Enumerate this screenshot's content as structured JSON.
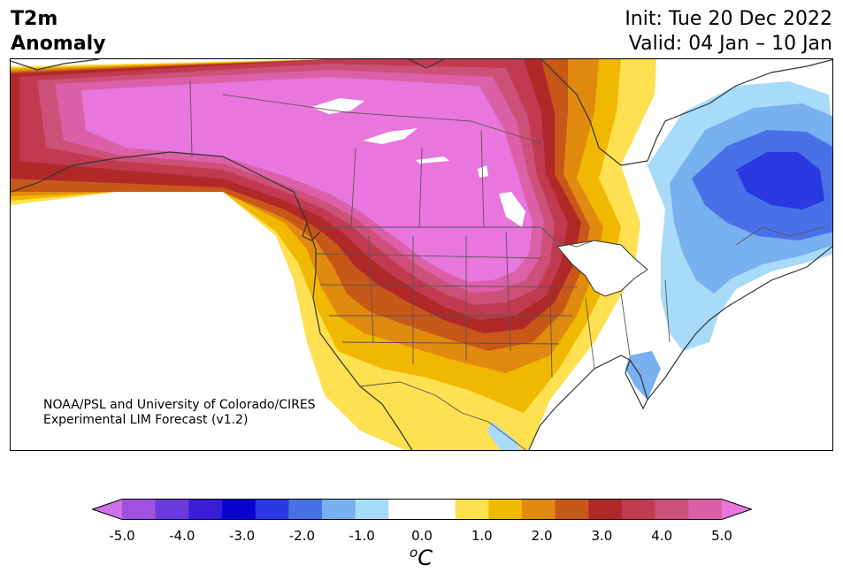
{
  "title": {
    "line1": "T2m",
    "line2": "Anomaly"
  },
  "dates": {
    "init": "Init: Tue 20 Dec 2022",
    "valid": "Valid: 04 Jan – 10 Jan"
  },
  "credit": {
    "line1": "NOAA/PSL and University of Colorado/CIRES",
    "line2": "Experimental LIM Forecast (v1.2)"
  },
  "colorbar": {
    "colors": [
      "#d070e6",
      "#a050e0",
      "#6a3ada",
      "#3a1ed6",
      "#0a00d0",
      "#2a3ae0",
      "#4a70e8",
      "#78b0f0",
      "#a8dbfa",
      "#ffffff",
      "#ffffff",
      "#fee050",
      "#f0b800",
      "#e08a10",
      "#c85818",
      "#b02828",
      "#c03a50",
      "#cc5078",
      "#db60a8",
      "#e876dc"
    ],
    "tick_labels": [
      "-5.0",
      "-4.0",
      "-3.0",
      "-2.0",
      "-1.0",
      "0.0",
      "1.0",
      "2.0",
      "3.0",
      "4.0",
      "5.0"
    ],
    "unit_base": "o",
    "unit": "C"
  }
}
